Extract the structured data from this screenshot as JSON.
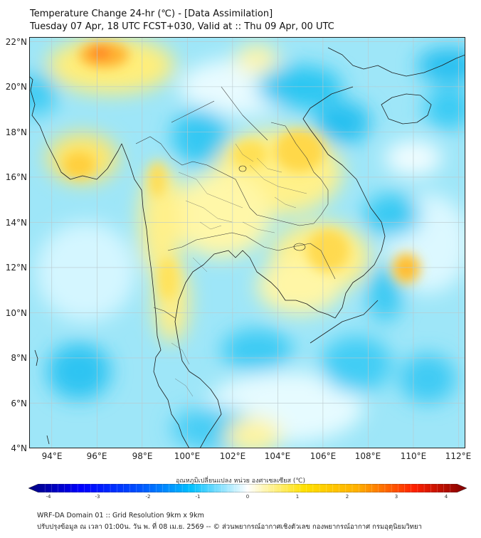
{
  "header": {
    "title": "Temperature Change 24-hr (℃) - [Data Assimilation]",
    "subtitle": "Tuesday 07 Apr, 18 UTC FCST+030, Valid at :: Thu 09 Apr, 00 UTC"
  },
  "map": {
    "lat_labels": [
      "22°N",
      "20°N",
      "18°N",
      "16°N",
      "14°N",
      "12°N",
      "10°N",
      "8°N",
      "6°N",
      "4°N"
    ],
    "lon_labels": [
      "94°E",
      "96°E",
      "98°E",
      "100°E",
      "102°E",
      "104°E",
      "106°E",
      "108°E",
      "110°E",
      "112°E"
    ],
    "lat_range": [
      4,
      22.2
    ],
    "lon_range": [
      93,
      112.3
    ],
    "warm_areas": [
      "Northern Myanmar",
      "Central Thailand",
      "Northeast Thailand",
      "Laos",
      "Cambodia",
      "East of Vietnam near 12°N 110°E"
    ],
    "cool_areas": [
      "Gulf of Tonkin",
      "South China Sea",
      "Andaman Sea",
      "Gulf of Thailand",
      "Northern Laos"
    ]
  },
  "colorbar": {
    "title": "อุณหภูมิเปลี่ยนแปลง หน่วย องศาเซลเซียส (℃)",
    "ticks": [
      "-4",
      "-3",
      "-2",
      "-1",
      "0",
      "1",
      "2",
      "3",
      "4"
    ],
    "min": -4,
    "max": 4,
    "colors": {
      "cold_end": "#00007f",
      "mid_cold": "#00c0ff",
      "neutral": "#ffffff",
      "mid_warm": "#ffe000",
      "warm_end": "#7f0000"
    }
  },
  "footer": {
    "line1": "WRF-DA Domain 01 :: Grid Resolution 9km x 9km",
    "line2": "ปรับปรุงข้อมูล ณ เวลา 01:00น. วัน พ. ที่ 08 เม.ย. 2569 -- © ส่วนพยากรณ์อากาศเชิงตัวเลข กองพยากรณ์อากาศ กรมอุตุนิยมวิทยา"
  }
}
